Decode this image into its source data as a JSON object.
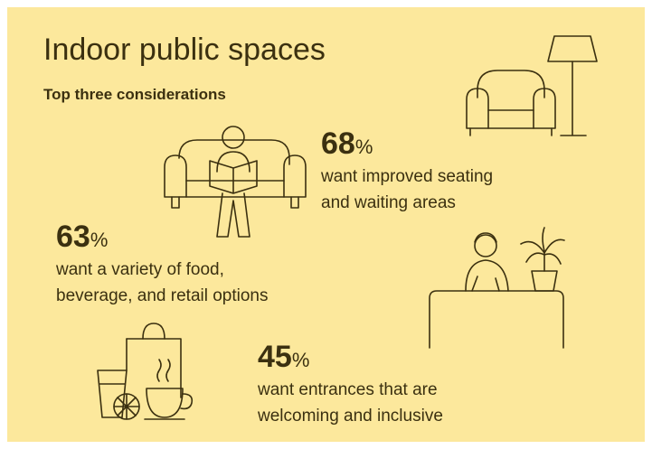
{
  "title": "Indoor public spaces",
  "subtitle": "Top three considerations",
  "stats": [
    {
      "value": 68,
      "unit": "%",
      "lines": [
        "want improved seating",
        "and waiting areas"
      ]
    },
    {
      "value": 63,
      "unit": "%",
      "lines": [
        "want a variety of food,",
        "beverage, and retail options"
      ]
    },
    {
      "value": 45,
      "unit": "%",
      "lines": [
        "want entrances that are",
        "welcoming and inclusive"
      ]
    }
  ]
}
